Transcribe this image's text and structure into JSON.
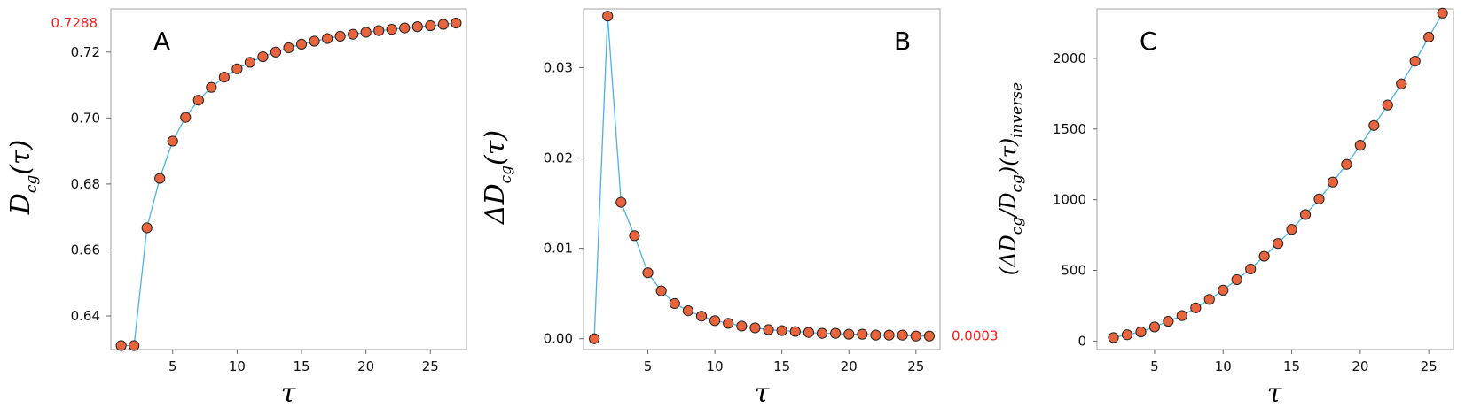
{
  "chart_data": [
    {
      "type": "scatter",
      "panel_label": "A",
      "xlabel": "τ",
      "ylabel": {
        "main": "D",
        "sub": "cg",
        "arg": "(τ)"
      },
      "xlim": [
        0.2,
        27.8
      ],
      "ylim": [
        0.6298,
        0.7331
      ],
      "xticks": [
        "5",
        "10",
        "15",
        "20",
        "25"
      ],
      "yticks": [
        "0.64",
        "0.66",
        "0.68",
        "0.70",
        "0.72"
      ],
      "highlight_tick": "0.7288",
      "highlight_value": 0.7288,
      "highlight_side": "left",
      "grid": false,
      "series": [
        {
          "color": "#e8643c",
          "line_color": "#4ab3e6",
          "x": [
            1,
            2,
            3,
            4,
            5,
            6,
            7,
            8,
            9,
            10,
            11,
            12,
            13,
            14,
            15,
            16,
            17,
            18,
            19,
            20,
            21,
            22,
            23,
            24,
            25,
            26,
            27
          ],
          "y": [
            0.631,
            0.631,
            0.6667,
            0.6817,
            0.693,
            0.7002,
            0.7054,
            0.7093,
            0.7124,
            0.7149,
            0.7169,
            0.7186,
            0.72,
            0.7213,
            0.7224,
            0.7233,
            0.7241,
            0.7248,
            0.7254,
            0.726,
            0.7265,
            0.7269,
            0.7273,
            0.7277,
            0.728,
            0.7284,
            0.7288
          ]
        }
      ]
    },
    {
      "type": "scatter",
      "panel_label": "B",
      "xlabel": "τ",
      "ylabel": {
        "main": "ΔD",
        "sub": "cg",
        "arg": "(τ)"
      },
      "xlim": [
        0.2,
        26.8
      ],
      "ylim": [
        -0.0012,
        0.0365
      ],
      "xticks": [
        "5",
        "10",
        "15",
        "20",
        "25"
      ],
      "yticks": [
        "0.00",
        "0.01",
        "0.02",
        "0.03"
      ],
      "highlight_tick": "0.0003",
      "highlight_value": 0.0003,
      "highlight_side": "right",
      "grid": false,
      "series": [
        {
          "color": "#e8643c",
          "line_color": "#4ab3e6",
          "x": [
            1,
            2,
            3,
            4,
            5,
            6,
            7,
            8,
            9,
            10,
            11,
            12,
            13,
            14,
            15,
            16,
            17,
            18,
            19,
            20,
            21,
            22,
            23,
            24,
            25,
            26
          ],
          "y": [
            0.0,
            0.0357,
            0.0151,
            0.0114,
            0.0073,
            0.0053,
            0.0039,
            0.0031,
            0.0025,
            0.002,
            0.0017,
            0.0014,
            0.0012,
            0.001,
            0.0009,
            0.0008,
            0.0007,
            0.0006,
            0.0006,
            0.0005,
            0.0005,
            0.0004,
            0.0004,
            0.0004,
            0.0003,
            0.0003
          ]
        }
      ]
    },
    {
      "type": "scatter",
      "panel_label": "C",
      "xlabel": "τ",
      "ylabel": {
        "main": "(ΔD",
        "sub": "cg",
        "mid": "/D",
        "sub2": "cg",
        "arg": ")(τ)",
        "sub3": "inverse"
      },
      "xlim": [
        0.8,
        26.8
      ],
      "ylim": [
        -60,
        2350
      ],
      "xticks": [
        "5",
        "10",
        "15",
        "20",
        "25"
      ],
      "yticks": [
        "0",
        "500",
        "1000",
        "1500",
        "2000"
      ],
      "grid": false,
      "series": [
        {
          "color": "#e8643c",
          "line_color": "#4ab3e6",
          "x": [
            2,
            3,
            4,
            5,
            6,
            7,
            8,
            9,
            10,
            11,
            12,
            13,
            14,
            15,
            16,
            17,
            18,
            19,
            20,
            21,
            22,
            23,
            24,
            25,
            26
          ],
          "y": [
            25,
            45,
            65,
            100,
            140,
            180,
            235,
            295,
            360,
            435,
            510,
            600,
            690,
            790,
            895,
            1005,
            1125,
            1250,
            1385,
            1525,
            1670,
            1820,
            1980,
            2150,
            2320
          ]
        }
      ]
    }
  ]
}
